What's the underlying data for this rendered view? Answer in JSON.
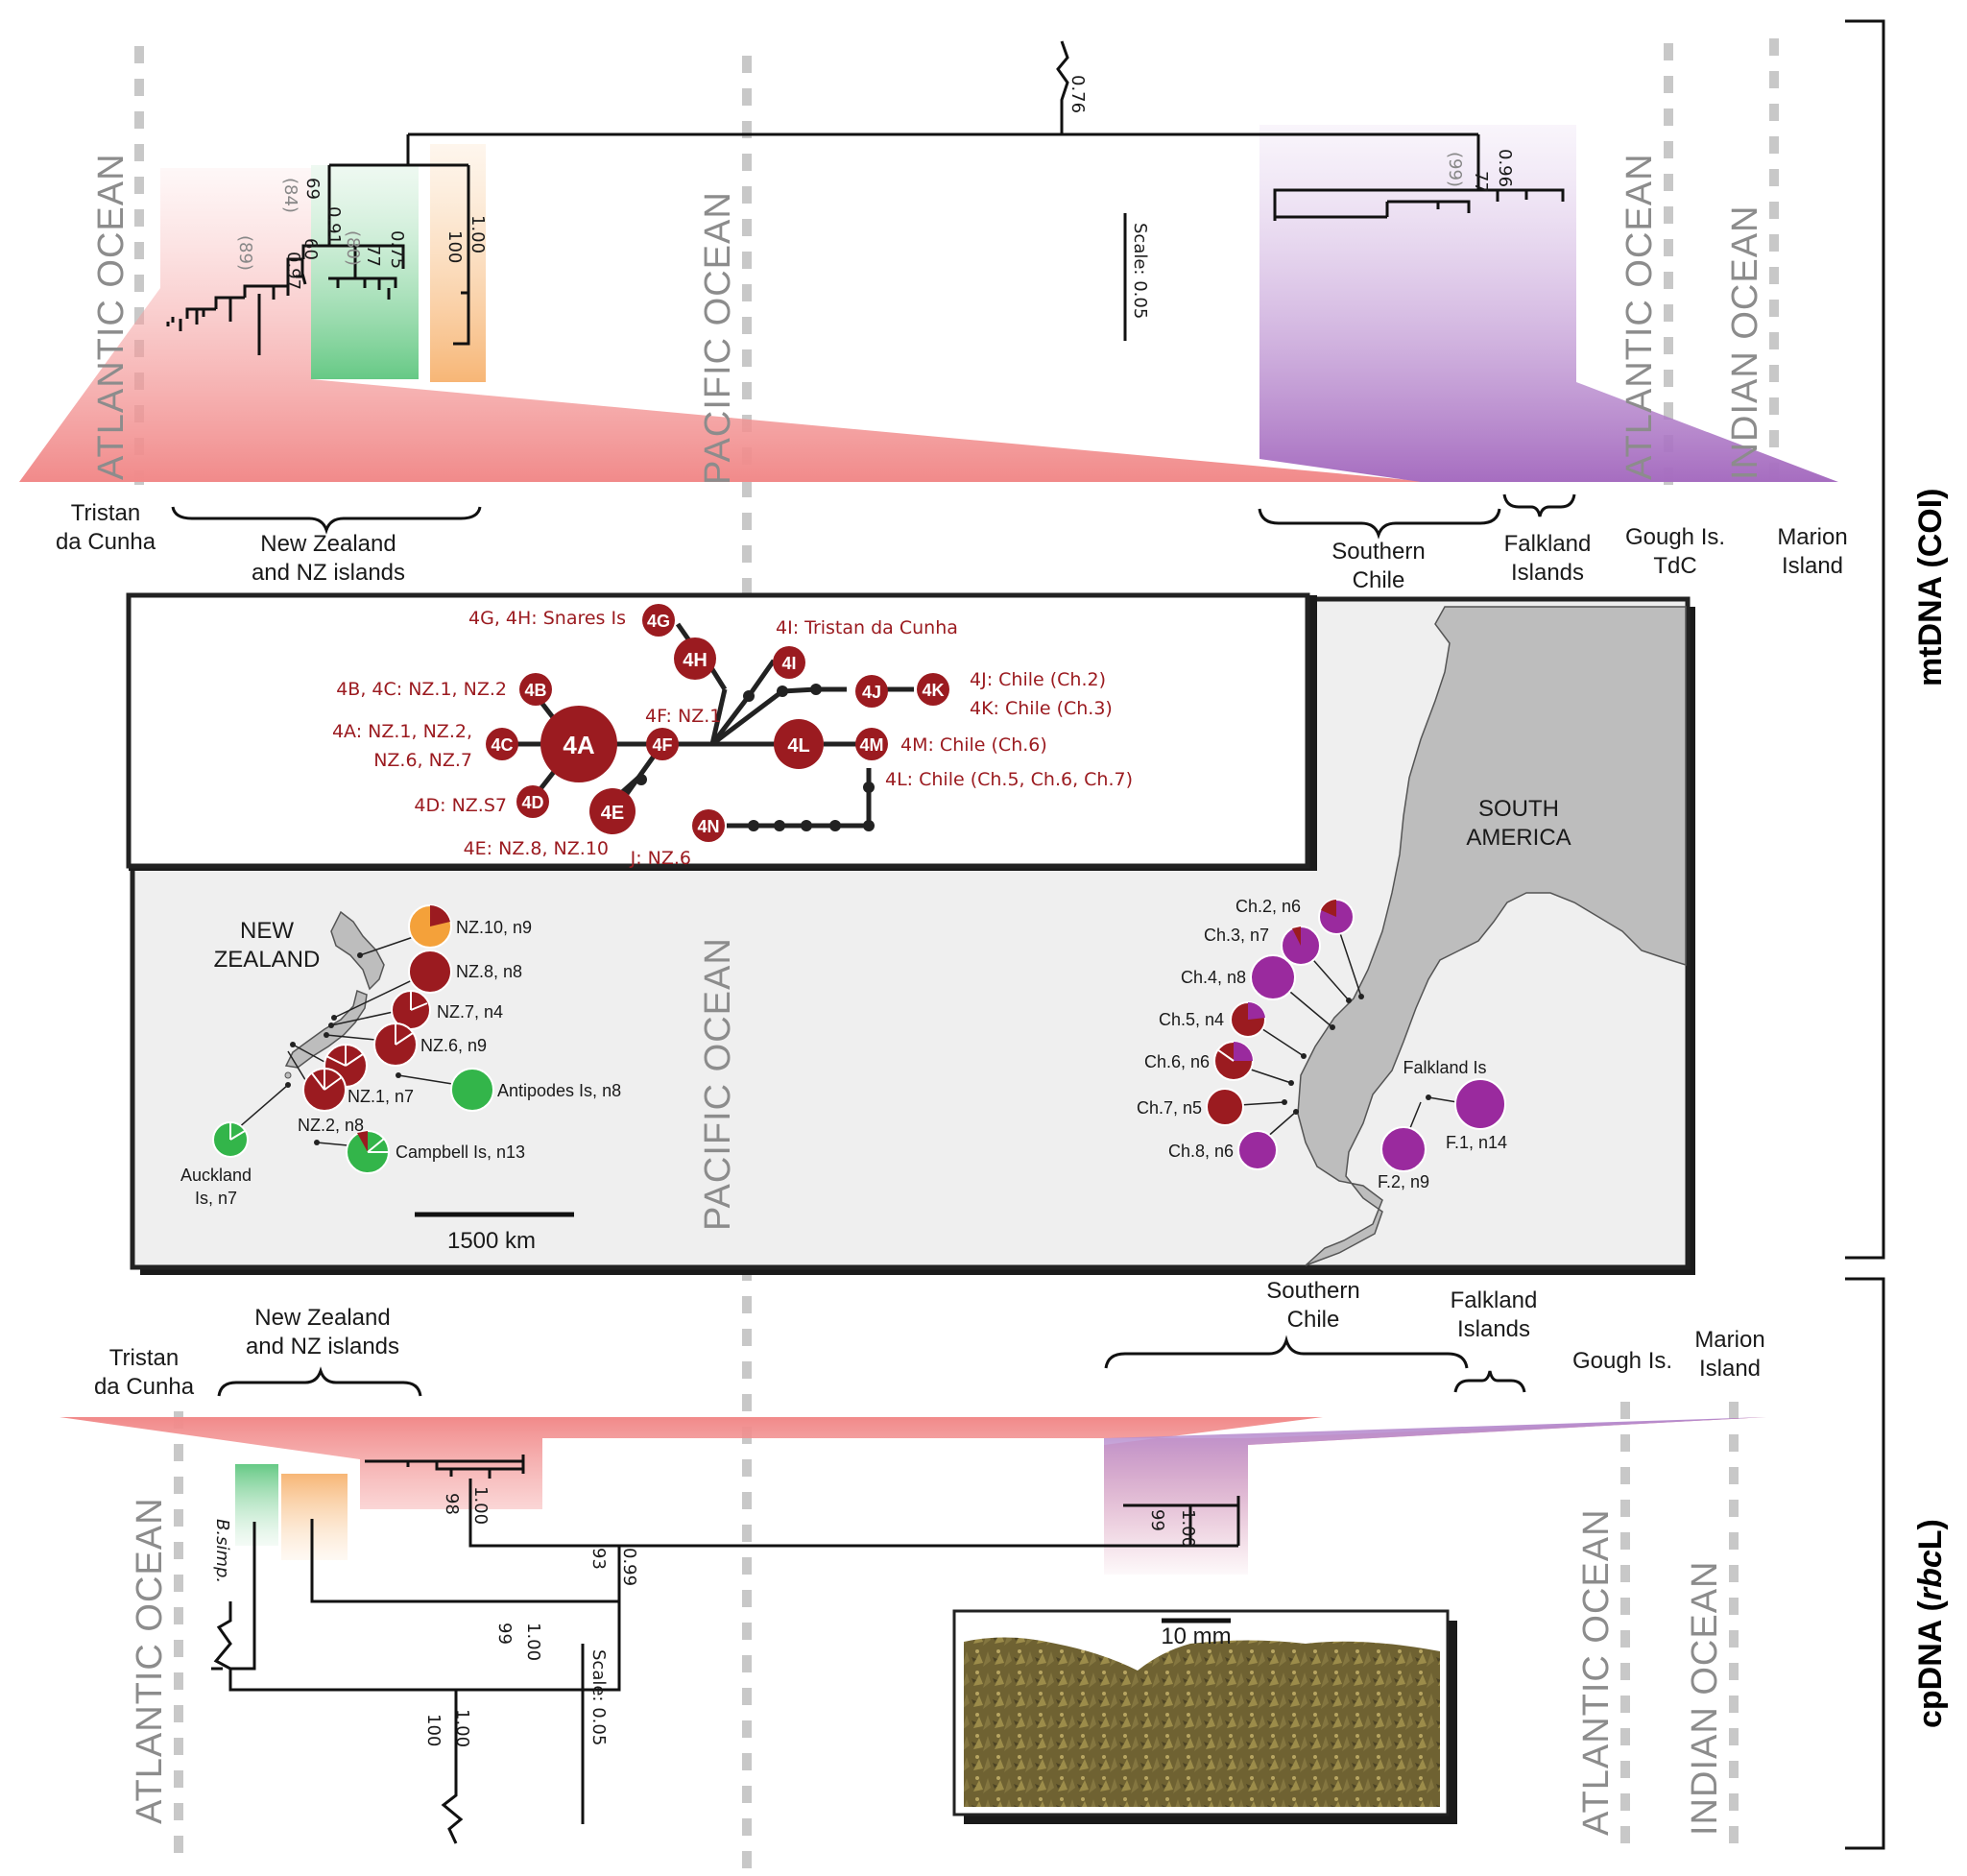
{
  "oceans": {
    "atlantic": "ATLANTIC OCEAN",
    "pacific": "PACIFIC OCEAN",
    "indian": "INDIAN OCEAN"
  },
  "markers": {
    "mtdna": "mtDNA (COI)",
    "cpdna_prefix": "cpDNA (",
    "cpdna_gene": "rbc",
    "cpdna_suffix": "L)"
  },
  "top_regions": {
    "tristan_1": "Tristan",
    "tristan_2": "da Cunha",
    "nz_1": "New Zealand",
    "nz_2": "and NZ islands",
    "chile_1": "Southern",
    "chile_2": "Chile",
    "falk_1": "Falkland",
    "falk_2": "Islands",
    "gough_1": "Gough Is.",
    "gough_2": "TdC",
    "marion_1": "Marion",
    "marion_2": "Island"
  },
  "bottom_regions": {
    "tristan_1": "Tristan",
    "tristan_2": "da Cunha",
    "nz_1": "New Zealand",
    "nz_2": "and NZ islands",
    "chile_1": "Southern",
    "chile_2": "Chile",
    "falk_1": "Falkland",
    "falk_2": "Islands",
    "gough": "Gough Is.",
    "marion_1": "Marion",
    "marion_2": "Island"
  },
  "top_tree": {
    "root": "0.76",
    "scale": "Scale: 0.05",
    "s069": "69",
    "s084": "(84)",
    "s091": "0.91",
    "s060": "60",
    "s097": "0.97",
    "s089": "(89)",
    "s075": "0.75",
    "s077a": "77",
    "s080": "(80)",
    "s100": "100",
    "s1": "1.00",
    "s096": "0.96",
    "s077b": "77",
    "s099": "(99)"
  },
  "bottom_tree": {
    "s098": "98",
    "s100a": "1.00",
    "s093": "93",
    "s099b": "0.99",
    "s099": "99",
    "s100b": "1.00",
    "s100": "100",
    "s100c": "1.00",
    "s99r": "99",
    "s100r": "1.00",
    "bsimp": "B.simp.",
    "scale": "Scale: 0.05"
  },
  "haplotypes": {
    "nodes": [
      "4A",
      "4B",
      "4C",
      "4D",
      "4E",
      "4F",
      "4G",
      "4H",
      "4I",
      "4J",
      "4K",
      "4L",
      "4M",
      "4N"
    ],
    "labels": {
      "gh": "4G, 4H: Snares Is",
      "i": "4I: Tristan da Cunha",
      "bc": "4B, 4C: NZ.1, NZ.2",
      "a1": "4A: NZ.1, NZ.2,",
      "a2": "NZ.6, NZ.7",
      "f": "4F: NZ.1",
      "d": "4D: NZ.S7",
      "e": "4E: NZ.8, NZ.10",
      "j": "J: NZ.6",
      "jk1": "4J: Chile (Ch.2)",
      "jk2": "4K: Chile (Ch.3)",
      "m": "4M: Chile (Ch.6)",
      "l": "4L: Chile (Ch.5, Ch.6, Ch.7)"
    }
  },
  "map": {
    "nz_1": "NEW",
    "nz_2": "ZEALAND",
    "sa_1": "SOUTH",
    "sa_2": "AMERICA",
    "pacific": "PACIFIC OCEAN",
    "scale": "1500 km",
    "pops": {
      "nz10": "NZ.10, n9",
      "nz8": "NZ.8, n8",
      "nz7": "NZ.7, n4",
      "nz6": "NZ.6, n9",
      "nz1": "NZ.1, n7",
      "nz2": "NZ.2, n8",
      "antipodes": "Antipodes Is, n8",
      "campbell": "Campbell Is, n13",
      "auckland_1": "Auckland",
      "auckland_2": "Is, n7",
      "ch2": "Ch.2, n6",
      "ch3": "Ch.3, n7",
      "ch4": "Ch.4, n8",
      "ch5": "Ch.5, n4",
      "ch6": "Ch.6, n6",
      "ch7": "Ch.7, n5",
      "ch8": "Ch.8, n6",
      "falk": "Falkland Is",
      "f1": "F.1, n14",
      "f2": "F.2, n9"
    }
  },
  "photo": {
    "scale": "10 mm"
  },
  "colors": {
    "nz_red": "#9b1b20",
    "pink": "#ef8080",
    "purple": "#a66dc0",
    "green": "#33b54a",
    "orange": "#f4a13a",
    "magenta": "#9a2a9e"
  }
}
